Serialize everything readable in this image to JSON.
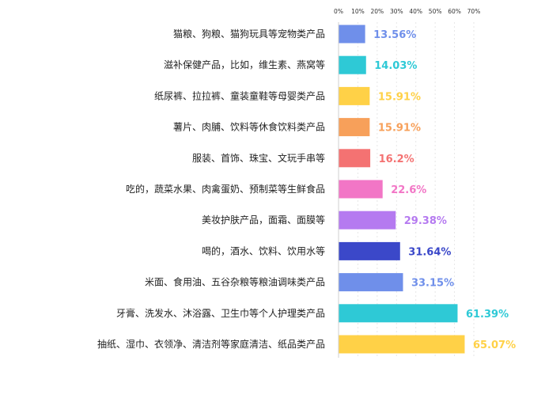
{
  "chart_data": {
    "type": "bar",
    "orientation": "horizontal",
    "xlim": [
      0,
      70
    ],
    "x_ticks": [
      "0%",
      "10%",
      "20%",
      "30%",
      "40%",
      "50%",
      "60%",
      "70%"
    ],
    "grid": true,
    "categories": [
      "猫粮、狗粮、猫狗玩具等宠物类产品",
      "滋补保健产品，比如，维生素、燕窝等",
      "纸尿裤、拉拉裤、童装童鞋等母婴类产品",
      "薯片、肉脯、饮料等休食饮料类产品",
      "服装、首饰、珠宝、文玩手串等",
      "吃的，蔬菜水果、肉禽蛋奶、预制菜等生鲜食品",
      "美妆护肤产品，面霜、面膜等",
      "喝的，酒水、饮料、饮用水等",
      "米面、食用油、五谷杂粮等粮油调味类产品",
      "牙膏、洗发水、沐浴露、卫生巾等个人护理类产品",
      "抽纸、湿巾、衣领净、清洁剂等家庭清洁、纸品类产品"
    ],
    "values": [
      13.56,
      14.03,
      15.91,
      15.91,
      16.2,
      22.6,
      29.38,
      31.64,
      33.15,
      61.39,
      65.07
    ],
    "value_labels": [
      "13.56%",
      "14.03%",
      "15.91%",
      "15.91%",
      "16.2%",
      "22.6%",
      "29.38%",
      "31.64%",
      "33.15%",
      "61.39%",
      "65.07%"
    ],
    "colors": [
      "#6f8fea",
      "#2ec9d6",
      "#ffd147",
      "#f7a05a",
      "#f47272",
      "#f276c6",
      "#b57af0",
      "#3b48c9",
      "#6f8fea",
      "#2ec9d6",
      "#ffd147"
    ]
  }
}
